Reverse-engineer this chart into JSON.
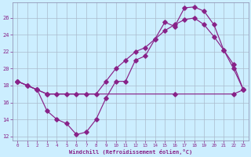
{
  "xlabel": "Windchill (Refroidissement éolien,°C)",
  "bg_color": "#cceeff",
  "grid_color": "#aabbcc",
  "line_color": "#882288",
  "xlim": [
    -0.5,
    23.5
  ],
  "ylim": [
    11.5,
    27.8
  ],
  "yticks": [
    12,
    14,
    16,
    18,
    20,
    22,
    24,
    26
  ],
  "xticks": [
    0,
    1,
    2,
    3,
    4,
    5,
    6,
    7,
    8,
    9,
    10,
    11,
    12,
    13,
    14,
    15,
    16,
    17,
    18,
    19,
    20,
    21,
    22,
    23
  ],
  "line1_x": [
    0,
    1,
    2,
    3,
    4,
    5,
    6,
    7,
    8,
    9,
    10,
    11,
    12,
    13,
    14,
    15,
    16,
    17,
    18,
    19,
    20,
    21,
    22,
    23
  ],
  "line1_y": [
    18.5,
    18.0,
    17.5,
    15.0,
    14.0,
    13.5,
    12.2,
    12.5,
    14.0,
    16.5,
    18.5,
    18.5,
    21.0,
    21.5,
    23.5,
    25.5,
    25.0,
    27.2,
    27.3,
    26.8,
    25.2,
    22.2,
    20.0,
    17.5
  ],
  "line2_x": [
    0,
    1,
    2,
    3,
    4,
    5,
    6,
    7,
    8,
    9,
    10,
    11,
    12,
    13,
    14,
    15,
    16,
    17,
    18,
    19,
    20,
    21,
    22,
    23
  ],
  "line2_y": [
    18.5,
    18.0,
    17.5,
    17.0,
    17.0,
    17.0,
    17.0,
    17.0,
    17.0,
    18.5,
    20.0,
    21.0,
    22.0,
    22.5,
    23.5,
    24.5,
    25.2,
    25.8,
    26.0,
    25.2,
    23.8,
    22.2,
    20.5,
    17.5
  ],
  "line3_x": [
    0,
    2,
    3,
    16,
    22,
    23
  ],
  "line3_y": [
    18.5,
    17.5,
    17.0,
    17.0,
    17.0,
    17.5
  ]
}
